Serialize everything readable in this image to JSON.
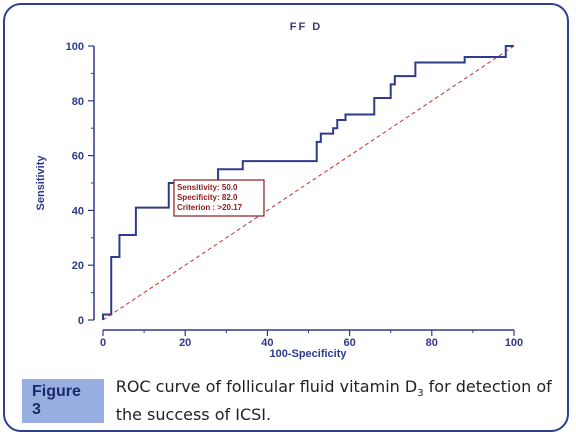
{
  "figure": {
    "label": "Figure 3",
    "caption_part1": "ROC curve of follicular fluid vitamin D",
    "caption_sub": "3",
    "caption_part2": " for detection of the success of ICSI."
  },
  "chart_data": {
    "type": "line",
    "title": "FF D",
    "xlabel": "100-Specificity",
    "ylabel": "Sensitivity",
    "xlim": [
      0,
      100
    ],
    "ylim": [
      0,
      100
    ],
    "xticks": [
      0,
      20,
      40,
      60,
      80,
      100
    ],
    "yticks": [
      0,
      20,
      40,
      60,
      80,
      100
    ],
    "grid": false,
    "series": [
      {
        "style": "step",
        "color": "#2e3a8c",
        "x": [
          0,
          0,
          2,
          2,
          4,
          4,
          8,
          8,
          16,
          16,
          28,
          28,
          34,
          34,
          52,
          52,
          53,
          53,
          56,
          56,
          57,
          57,
          59,
          59,
          66,
          66,
          70,
          70,
          71,
          71,
          76,
          76,
          88,
          88,
          98,
          98,
          100
        ],
        "y": [
          0,
          2,
          2,
          23,
          23,
          31,
          31,
          41,
          41,
          50,
          50,
          55,
          55,
          58,
          58,
          65,
          65,
          68,
          68,
          70,
          70,
          73,
          73,
          75,
          75,
          81,
          81,
          86,
          86,
          89,
          89,
          94,
          94,
          96,
          96,
          100,
          100
        ]
      },
      {
        "style": "dashed",
        "color": "#c03030",
        "x": [
          0,
          100
        ],
        "y": [
          0,
          100
        ]
      }
    ],
    "annotation": {
      "lines": [
        "Sensitivity: 50.0",
        "Specificity: 82.0",
        "Criterion : >20.17"
      ],
      "point": [
        18,
        50
      ],
      "border_color": "#8b1a1a"
    }
  }
}
